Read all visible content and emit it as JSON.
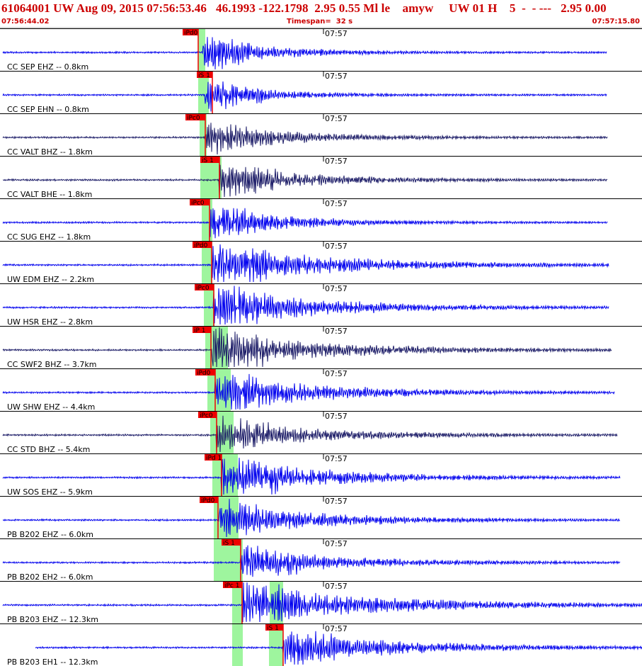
{
  "header": {
    "title": "61064001 UW Aug 09, 2015 07:56:53.46   46.1993 -122.1798  2.95 0.55 Ml le    amyw     UW 01 H    5  -  - ---   2.95 0.00",
    "start_time": "07:56:44.02",
    "timespan": "Timespan=  32 s",
    "end_time": "07:57:15.80"
  },
  "colors": {
    "header_text": "#cc0000",
    "trace_blue": "#0000ee",
    "trace_dark": "#1a1a66",
    "pick_window": "#9ef59e",
    "pick_marker": "#ee0000"
  },
  "minute_label": "07:57",
  "traces": [
    {
      "label": "CC SEP EHZ -- 0.8km",
      "color": "blue",
      "pick": "iPd0"
    },
    {
      "label": "CC SEP EHN -- 0.8km",
      "color": "blue",
      "pick": "iS 1"
    },
    {
      "label": "CC VALT BHZ -- 1.8km",
      "color": "dark",
      "pick": "iPc0"
    },
    {
      "label": "CC VALT BHE -- 1.8km",
      "color": "dark",
      "pick": "iS 1"
    },
    {
      "label": "CC SUG EHZ -- 1.8km",
      "color": "blue",
      "pick": "iPc0"
    },
    {
      "label": "UW EDM EHZ -- 2.2km",
      "color": "blue",
      "pick": "iPd0"
    },
    {
      "label": "UW HSR EHZ -- 2.8km",
      "color": "blue",
      "pick": "iPc0"
    },
    {
      "label": "CC SWF2 BHZ -- 3.7km",
      "color": "dark",
      "pick": "iP 1"
    },
    {
      "label": "UW SHW EHZ -- 4.4km",
      "color": "blue",
      "pick": "iPd0"
    },
    {
      "label": "CC STD BHZ -- 5.4km",
      "color": "dark",
      "pick": "iPc0"
    },
    {
      "label": "UW SOS EHZ -- 5.9km",
      "color": "blue",
      "pick": "iPd 1"
    },
    {
      "label": "PB B202 EHZ -- 6.0km",
      "color": "blue",
      "pick": "iPd0"
    },
    {
      "label": "PB B202 EH2 -- 6.0km",
      "color": "blue",
      "pick": "iS 1"
    },
    {
      "label": "PB B203 EHZ -- 12.3km",
      "color": "blue",
      "pick": "iPc 1"
    },
    {
      "label": "PB B203 EH1 -- 12.3km",
      "color": "blue",
      "pick": "iS 1"
    }
  ]
}
